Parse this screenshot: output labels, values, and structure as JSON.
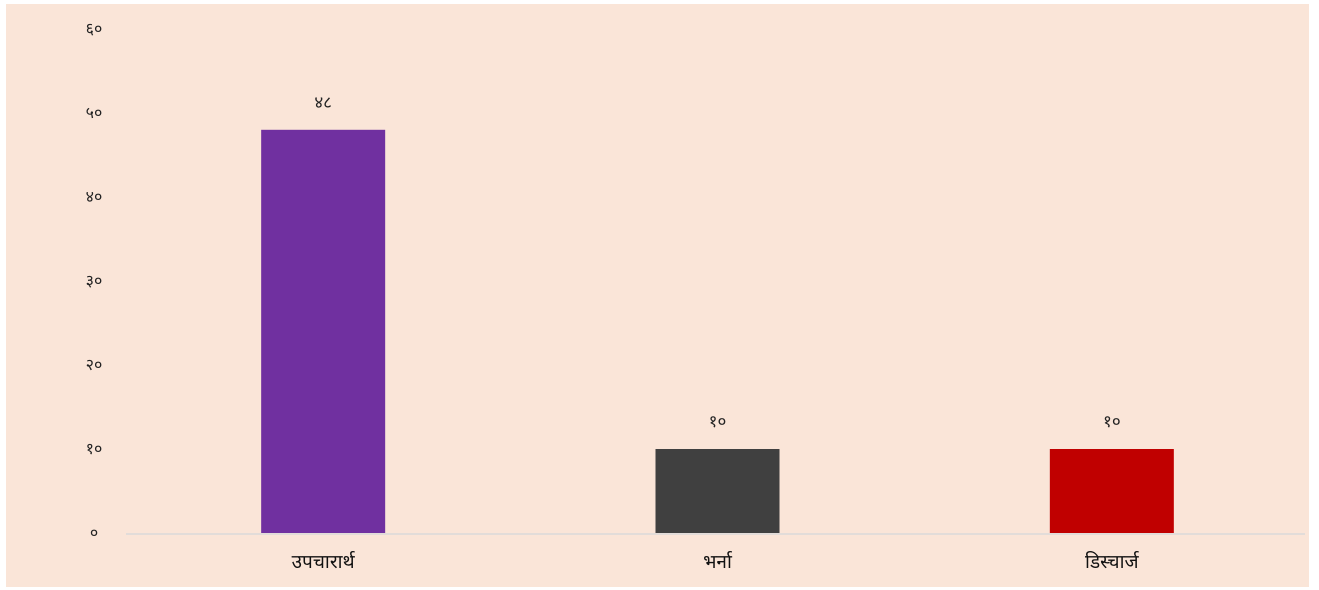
{
  "chart_data": {
    "type": "bar",
    "categories": [
      "उपचारार्थ",
      "भर्ना",
      "डिस्चार्ज"
    ],
    "values": [
      48,
      10,
      10
    ],
    "value_labels": [
      "४८",
      "१०",
      "१०"
    ],
    "y_ticks": [
      0,
      10,
      20,
      30,
      40,
      50,
      60
    ],
    "y_tick_labels": [
      "०",
      "१०",
      "२०",
      "३०",
      "४०",
      "५०",
      "६०"
    ],
    "ylim": [
      0,
      60
    ],
    "title": "",
    "xlabel": "",
    "ylabel": "",
    "grid": false,
    "bar_colors": [
      "#7030a0",
      "#404040",
      "#c00000"
    ],
    "background_color": "#fae5d8",
    "axis_color": "#d9d9d9"
  }
}
